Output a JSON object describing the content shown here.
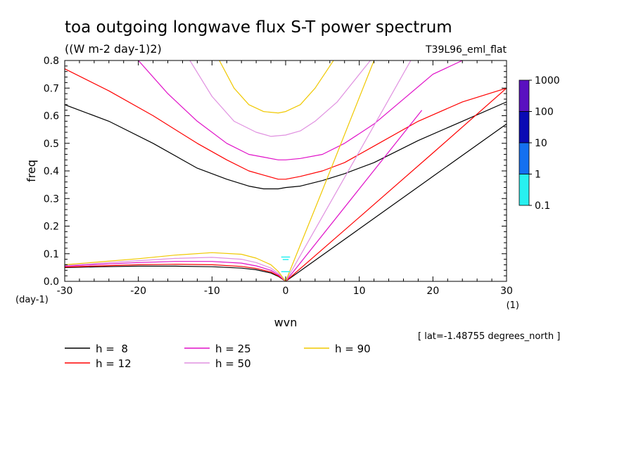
{
  "chart_data": {
    "type": "line",
    "title": "toa outgoing longwave flux S-T power spectrum",
    "subtitle": "((W m-2 day-1)2)",
    "experiment": "T39L96_eml_flat",
    "xlabel": "wvn",
    "ylabel": "freq",
    "x_unit": "(1)",
    "y_unit": "(day-1)",
    "xlim": [
      -30,
      30
    ],
    "ylim": [
      0,
      0.8
    ],
    "x_ticks": [
      "-30",
      "-20",
      "-10",
      "0",
      "10",
      "20",
      "30"
    ],
    "x_tick_values": [
      -30,
      -20,
      -10,
      0,
      10,
      20,
      30
    ],
    "y_ticks": [
      "0.0",
      "0.1",
      "0.2",
      "0.3",
      "0.4",
      "0.5",
      "0.6",
      "0.7",
      "0.8"
    ],
    "y_tick_values": [
      0,
      0.1,
      0.2,
      0.3,
      0.4,
      0.5,
      0.6,
      0.7,
      0.8
    ],
    "note": "[ lat=-1.48755 degrees_north ]",
    "colorbar": {
      "labels": [
        "1000",
        "100",
        "10",
        "1",
        "0.1"
      ],
      "colors": [
        "#5a10c0",
        "#0a0ab4",
        "#1470f0",
        "#28f0f0"
      ]
    },
    "series": [
      {
        "name": "h =  8",
        "color": "#000000",
        "dispersion_curves": [
          {
            "x": [
              -30,
              -24,
              -18,
              -12,
              -8,
              -5,
              -3,
              -1,
              0,
              2,
              5,
              8,
              12,
              18,
              24,
              30
            ],
            "y": [
              0.64,
              0.58,
              0.5,
              0.41,
              0.37,
              0.345,
              0.335,
              0.335,
              0.34,
              0.345,
              0.365,
              0.39,
              0.43,
              0.51,
              0.58,
              0.65
            ]
          },
          {
            "x": [
              -30,
              -25,
              -20,
              -15,
              -10,
              -6,
              -4,
              -2,
              -1,
              0
            ],
            "y": [
              0.05,
              0.053,
              0.055,
              0.055,
              0.053,
              0.048,
              0.042,
              0.03,
              0.018,
              0.0
            ]
          },
          {
            "x": [
              0,
              10,
              20,
              30
            ],
            "y": [
              0.0,
              0.19,
              0.38,
              0.57
            ]
          }
        ]
      },
      {
        "name": "h = 12",
        "color": "#ff0000",
        "dispersion_curves": [
          {
            "x": [
              -30,
              -24,
              -18,
              -12,
              -8,
              -5,
              -3,
              -1,
              0,
              2,
              5,
              8,
              12,
              18,
              24,
              30
            ],
            "y": [
              0.77,
              0.69,
              0.6,
              0.5,
              0.44,
              0.4,
              0.385,
              0.37,
              0.37,
              0.38,
              0.4,
              0.43,
              0.49,
              0.58,
              0.65,
              0.7
            ]
          },
          {
            "x": [
              -30,
              -25,
              -20,
              -15,
              -10,
              -6,
              -4,
              -2,
              -1,
              0
            ],
            "y": [
              0.052,
              0.056,
              0.06,
              0.062,
              0.06,
              0.054,
              0.047,
              0.034,
              0.02,
              0.0
            ]
          },
          {
            "x": [
              0,
              10,
              20,
              30
            ],
            "y": [
              0.0,
              0.232,
              0.465,
              0.7
            ]
          }
        ]
      },
      {
        "name": "h = 25",
        "color": "#e010c8",
        "dispersion_curves": [
          {
            "x": [
              -20,
              -16,
              -12,
              -8,
              -5,
              -3,
              -1,
              0,
              2,
              5,
              8,
              12,
              16,
              20,
              24
            ],
            "y": [
              0.8,
              0.68,
              0.58,
              0.5,
              0.46,
              0.45,
              0.44,
              0.44,
              0.445,
              0.46,
              0.5,
              0.57,
              0.66,
              0.75,
              0.8
            ]
          },
          {
            "x": [
              -30,
              -25,
              -20,
              -15,
              -10,
              -6,
              -4,
              -2,
              -1,
              0
            ],
            "y": [
              0.055,
              0.062,
              0.068,
              0.072,
              0.072,
              0.066,
              0.056,
              0.04,
              0.024,
              0.0
            ]
          },
          {
            "x": [
              0,
              10,
              18.5
            ],
            "y": [
              0.0,
              0.335,
              0.62
            ]
          }
        ]
      },
      {
        "name": "h = 50",
        "color": "#e090e0",
        "dispersion_curves": [
          {
            "x": [
              -13,
              -10,
              -7,
              -4,
              -2,
              0,
              2,
              4,
              7,
              10,
              11.5
            ],
            "y": [
              0.8,
              0.67,
              0.58,
              0.54,
              0.525,
              0.53,
              0.545,
              0.58,
              0.65,
              0.75,
              0.8
            ]
          },
          {
            "x": [
              -30,
              -25,
              -20,
              -15,
              -10,
              -6,
              -4,
              -2,
              -1,
              0
            ],
            "y": [
              0.057,
              0.066,
              0.075,
              0.083,
              0.087,
              0.08,
              0.068,
              0.048,
              0.029,
              0.0
            ]
          },
          {
            "x": [
              0,
              10,
              17
            ],
            "y": [
              0.0,
              0.47,
              0.8
            ]
          }
        ]
      },
      {
        "name": "h = 90",
        "color": "#f0c800",
        "dispersion_curves": [
          {
            "x": [
              -9,
              -7,
              -5,
              -3,
              -1,
              0,
              2,
              4,
              6,
              6.5
            ],
            "y": [
              0.8,
              0.7,
              0.64,
              0.615,
              0.61,
              0.615,
              0.64,
              0.7,
              0.78,
              0.8
            ]
          },
          {
            "x": [
              -30,
              -25,
              -20,
              -15,
              -10,
              -6,
              -4,
              -2,
              -1,
              0
            ],
            "y": [
              0.06,
              0.071,
              0.082,
              0.095,
              0.104,
              0.098,
              0.084,
              0.06,
              0.036,
              0.0
            ]
          },
          {
            "x": [
              0,
              5,
              12
            ],
            "y": [
              0.0,
              0.33,
              0.8
            ]
          }
        ]
      }
    ],
    "spectrum_marks": [
      {
        "x": [
          -0.6,
          0.6
        ],
        "y": [
          0.088,
          0.088
        ]
      },
      {
        "x": [
          -0.4,
          0.4
        ],
        "y": [
          0.079,
          0.079
        ]
      },
      {
        "x": [
          -0.6,
          0.6
        ],
        "y": [
          0.035,
          0.035
        ]
      }
    ]
  }
}
